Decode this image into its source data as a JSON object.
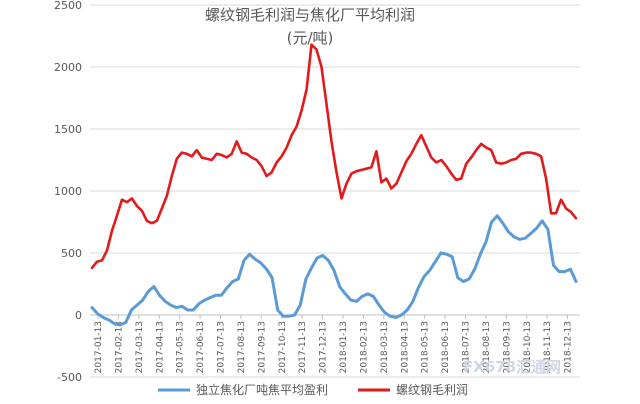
{
  "chart_data": {
    "type": "line",
    "title": "螺纹钢毛利润与焦化厂平均利润",
    "subtitle": "(元/吨)",
    "ylim": [
      -500,
      2500
    ],
    "yticks": [
      -500,
      0,
      500,
      1000,
      1500,
      2000,
      2500
    ],
    "grid": true,
    "legend_placement": "bottom",
    "x_tick_labels": [
      "2017-01-13",
      "2017-02-13",
      "2017-03-13",
      "2017-04-13",
      "2017-05-13",
      "2017-06-13",
      "2017-07-13",
      "2017-08-13",
      "2017-09-13",
      "2017-10-13",
      "2017-11-13",
      "2017-12-13",
      "2018-01-13",
      "2018-02-13",
      "2018-03-13",
      "2018-04-13",
      "2018-05-13",
      "2018-06-13",
      "2018-07-13",
      "2018-08-13",
      "2018-09-13",
      "2018-10-13",
      "2018-11-13",
      "2018-12-13"
    ],
    "series": [
      {
        "name": "独立焦化厂吨焦平均盈利",
        "color": "#5b9bd5",
        "values": [
          60,
          10,
          -20,
          -40,
          -70,
          -80,
          -60,
          40,
          80,
          120,
          190,
          230,
          160,
          110,
          80,
          60,
          70,
          40,
          40,
          90,
          120,
          140,
          160,
          160,
          220,
          270,
          290,
          440,
          490,
          450,
          420,
          370,
          300,
          40,
          -10,
          -10,
          0,
          80,
          290,
          380,
          460,
          480,
          440,
          360,
          230,
          170,
          120,
          110,
          150,
          170,
          150,
          80,
          20,
          -10,
          -20,
          0,
          40,
          110,
          220,
          310,
          360,
          430,
          500,
          490,
          470,
          300,
          270,
          290,
          370,
          490,
          590,
          750,
          800,
          740,
          670,
          630,
          610,
          620,
          660,
          700,
          760,
          690,
          400,
          350,
          350,
          370,
          270
        ]
      },
      {
        "name": "螺纹钢毛利润",
        "color": "#e31a1c",
        "values": [
          380,
          430,
          440,
          520,
          680,
          800,
          930,
          910,
          940,
          880,
          840,
          760,
          740,
          760,
          860,
          960,
          1120,
          1260,
          1310,
          1300,
          1280,
          1330,
          1270,
          1260,
          1250,
          1300,
          1290,
          1270,
          1300,
          1400,
          1310,
          1300,
          1270,
          1250,
          1200,
          1120,
          1150,
          1230,
          1280,
          1350,
          1450,
          1520,
          1650,
          1820,
          2180,
          2140,
          2000,
          1700,
          1400,
          1150,
          940,
          1060,
          1140,
          1160,
          1170,
          1180,
          1190,
          1320,
          1070,
          1100,
          1020,
          1060,
          1150,
          1240,
          1300,
          1380,
          1450,
          1360,
          1270,
          1230,
          1250,
          1200,
          1140,
          1090,
          1100,
          1220,
          1270,
          1330,
          1380,
          1350,
          1330,
          1230,
          1220,
          1230,
          1250,
          1260,
          1300,
          1310,
          1310,
          1300,
          1280,
          1100,
          820,
          820,
          930,
          860,
          830,
          780
        ]
      }
    ]
  },
  "watermark": "FX678汇通网"
}
